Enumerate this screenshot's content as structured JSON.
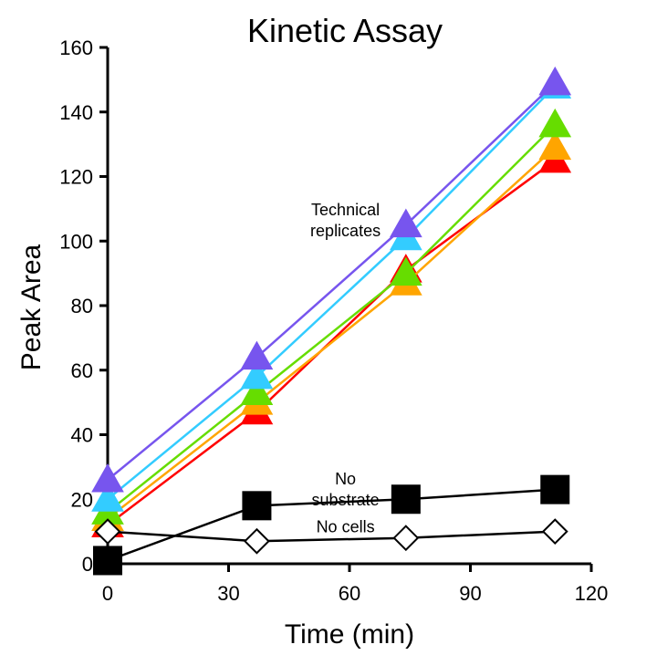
{
  "chart_data": {
    "type": "line",
    "title": "Kinetic Assay",
    "xlabel": "Time (min)",
    "ylabel": "Peak Area",
    "xlim": [
      0,
      120
    ],
    "ylim": [
      0,
      160
    ],
    "xticks": [
      0,
      30,
      60,
      90,
      120
    ],
    "yticks": [
      0,
      20,
      40,
      60,
      80,
      100,
      120,
      140,
      160
    ],
    "grid": false,
    "x": [
      0,
      37,
      74,
      111
    ],
    "series": [
      {
        "color": "#ff0000",
        "marker": "triangle",
        "values": [
          12,
          47,
          91,
          125
        ]
      },
      {
        "color": "#ffa500",
        "marker": "triangle",
        "values": [
          14,
          50,
          87,
          129
        ]
      },
      {
        "color": "#66dd00",
        "marker": "triangle",
        "values": [
          16,
          53,
          90,
          136
        ]
      },
      {
        "color": "#33ccff",
        "marker": "triangle",
        "values": [
          20,
          58,
          101,
          148
        ]
      },
      {
        "color": "#7755ee",
        "marker": "triangle",
        "values": [
          26,
          64,
          105,
          149
        ]
      },
      {
        "color": "#000000",
        "marker": "square-filled",
        "values": [
          1,
          18,
          20,
          23
        ]
      },
      {
        "color": "#000000",
        "marker": "diamond-open",
        "values": [
          10,
          7,
          8,
          10
        ]
      }
    ],
    "annotations": [
      {
        "lines": [
          "Technical",
          "replicates"
        ],
        "x": 59,
        "y": 106.5
      },
      {
        "lines": [
          "No",
          "substrate"
        ],
        "x": 59,
        "y": 23
      },
      {
        "lines": [
          "No cells"
        ],
        "x": 59,
        "y": 11.5
      }
    ]
  }
}
